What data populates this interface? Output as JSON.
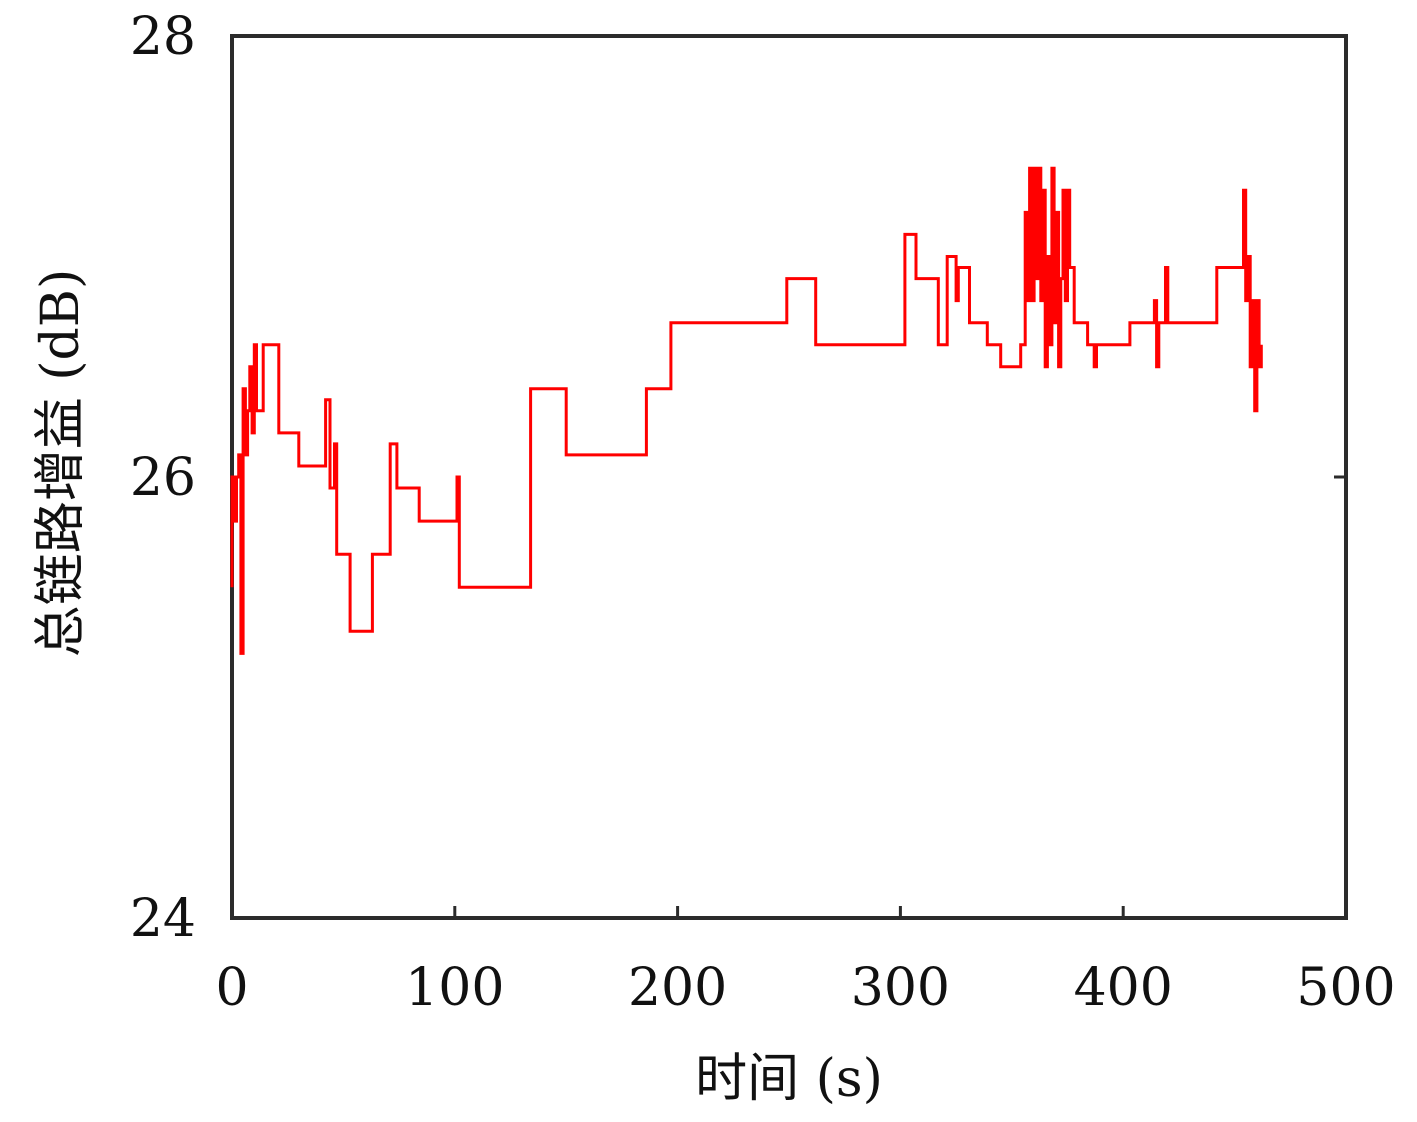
{
  "chart_data": {
    "type": "line",
    "xlabel": "时间 (s)",
    "ylabel": "总链路增益 (dB)",
    "xlim": [
      0,
      500
    ],
    "ylim": [
      24,
      28
    ],
    "xticks": [
      0,
      100,
      200,
      300,
      400,
      500
    ],
    "yticks": [
      24,
      26,
      28
    ],
    "x_tick_labels": [
      "0",
      "100",
      "200",
      "300",
      "400",
      "500"
    ],
    "y_tick_labels": [
      "24",
      "26",
      "28"
    ],
    "grid": false,
    "step": true,
    "series": [
      {
        "color": "#ff0000",
        "points": [
          [
            0.0,
            25.5
          ],
          [
            0.0,
            26.0
          ],
          [
            1.0,
            26.0
          ],
          [
            1.0,
            25.8
          ],
          [
            2.0,
            25.8
          ],
          [
            2.0,
            26.0
          ],
          [
            3.0,
            26.0
          ],
          [
            3.0,
            26.1
          ],
          [
            4.0,
            26.1
          ],
          [
            4.0,
            25.2
          ],
          [
            5.0,
            25.2
          ],
          [
            5.0,
            26.4
          ],
          [
            6.0,
            26.4
          ],
          [
            6.0,
            26.1
          ],
          [
            7.0,
            26.1
          ],
          [
            7.0,
            26.3
          ],
          [
            8.0,
            26.3
          ],
          [
            8.0,
            26.5
          ],
          [
            9.0,
            26.5
          ],
          [
            9.0,
            26.2
          ],
          [
            10.0,
            26.2
          ],
          [
            10.0,
            26.6
          ],
          [
            11.0,
            26.6
          ],
          [
            11.0,
            26.3
          ],
          [
            14.0,
            26.3
          ],
          [
            14.0,
            26.6
          ],
          [
            21.0,
            26.6
          ],
          [
            21.0,
            26.2
          ],
          [
            30.0,
            26.2
          ],
          [
            30.0,
            26.05
          ],
          [
            42.0,
            26.05
          ],
          [
            42.0,
            26.35
          ],
          [
            44.0,
            26.35
          ],
          [
            44.0,
            25.95
          ],
          [
            46.0,
            25.95
          ],
          [
            46.0,
            26.15
          ],
          [
            47.0,
            26.15
          ],
          [
            47.0,
            25.65
          ],
          [
            53.0,
            25.65
          ],
          [
            53.0,
            25.3
          ],
          [
            63.0,
            25.3
          ],
          [
            63.0,
            25.65
          ],
          [
            71.0,
            25.65
          ],
          [
            71.0,
            26.15
          ],
          [
            74.0,
            26.15
          ],
          [
            74.0,
            25.95
          ],
          [
            84.0,
            25.95
          ],
          [
            84.0,
            25.8
          ],
          [
            101.0,
            25.8
          ],
          [
            101.0,
            26.0
          ],
          [
            102.0,
            26.0
          ],
          [
            102.0,
            25.5
          ],
          [
            134.0,
            25.5
          ],
          [
            134.0,
            26.4
          ],
          [
            150.0,
            26.4
          ],
          [
            150.0,
            26.1
          ],
          [
            186.0,
            26.1
          ],
          [
            186.0,
            26.4
          ],
          [
            197.0,
            26.4
          ],
          [
            197.0,
            26.7
          ],
          [
            249.0,
            26.7
          ],
          [
            249.0,
            26.9
          ],
          [
            262.0,
            26.9
          ],
          [
            262.0,
            26.6
          ],
          [
            302.0,
            26.6
          ],
          [
            302.0,
            27.1
          ],
          [
            307.0,
            27.1
          ],
          [
            307.0,
            26.9
          ],
          [
            317.0,
            26.9
          ],
          [
            317.0,
            26.6
          ],
          [
            321.0,
            26.6
          ],
          [
            321.0,
            27.0
          ],
          [
            325.0,
            27.0
          ],
          [
            325.0,
            26.8
          ],
          [
            326.0,
            26.8
          ],
          [
            326.0,
            26.95
          ],
          [
            331.0,
            26.95
          ],
          [
            331.0,
            26.7
          ],
          [
            339.0,
            26.7
          ],
          [
            339.0,
            26.6
          ],
          [
            345.0,
            26.6
          ],
          [
            345.0,
            26.5
          ],
          [
            354.0,
            26.5
          ],
          [
            354.0,
            26.6
          ],
          [
            356.0,
            26.6
          ],
          [
            356.0,
            27.2
          ],
          [
            357.0,
            27.2
          ],
          [
            357.0,
            26.8
          ],
          [
            358.0,
            26.8
          ],
          [
            358.0,
            27.4
          ],
          [
            359.0,
            27.4
          ],
          [
            359.0,
            26.8
          ],
          [
            360.0,
            26.8
          ],
          [
            360.0,
            27.4
          ],
          [
            361.0,
            27.4
          ],
          [
            361.0,
            26.9
          ],
          [
            362.0,
            26.9
          ],
          [
            362.0,
            27.4
          ],
          [
            363.0,
            27.4
          ],
          [
            363.0,
            26.8
          ],
          [
            364.0,
            26.8
          ],
          [
            364.0,
            27.3
          ],
          [
            365.0,
            27.3
          ],
          [
            365.0,
            26.5
          ],
          [
            366.0,
            26.5
          ],
          [
            366.0,
            27.0
          ],
          [
            367.0,
            27.0
          ],
          [
            367.0,
            26.6
          ],
          [
            368.0,
            26.6
          ],
          [
            368.0,
            27.4
          ],
          [
            369.0,
            27.4
          ],
          [
            369.0,
            26.7
          ],
          [
            370.0,
            26.7
          ],
          [
            370.0,
            27.2
          ],
          [
            371.0,
            27.2
          ],
          [
            371.0,
            26.5
          ],
          [
            372.0,
            26.5
          ],
          [
            372.0,
            26.9
          ],
          [
            373.0,
            26.9
          ],
          [
            373.0,
            27.3
          ],
          [
            374.0,
            27.3
          ],
          [
            374.0,
            26.8
          ],
          [
            375.0,
            26.8
          ],
          [
            375.0,
            27.3
          ],
          [
            376.0,
            27.3
          ],
          [
            376.0,
            26.95
          ],
          [
            378.0,
            26.95
          ],
          [
            378.0,
            26.7
          ],
          [
            384.0,
            26.7
          ],
          [
            384.0,
            26.6
          ],
          [
            387.0,
            26.6
          ],
          [
            387.0,
            26.5
          ],
          [
            388.0,
            26.5
          ],
          [
            388.0,
            26.6
          ],
          [
            403.0,
            26.6
          ],
          [
            403.0,
            26.7
          ],
          [
            414.0,
            26.7
          ],
          [
            414.0,
            26.8
          ],
          [
            415.0,
            26.8
          ],
          [
            415.0,
            26.5
          ],
          [
            416.0,
            26.5
          ],
          [
            416.0,
            26.7
          ],
          [
            419.0,
            26.7
          ],
          [
            419.0,
            26.95
          ],
          [
            420.0,
            26.95
          ],
          [
            420.0,
            26.7
          ],
          [
            442.0,
            26.7
          ],
          [
            442.0,
            26.95
          ],
          [
            454.0,
            26.95
          ],
          [
            454.0,
            27.3
          ],
          [
            455.0,
            27.3
          ],
          [
            455.0,
            26.8
          ],
          [
            456.0,
            26.8
          ],
          [
            456.0,
            27.0
          ],
          [
            457.0,
            27.0
          ],
          [
            457.0,
            26.5
          ],
          [
            458.0,
            26.5
          ],
          [
            458.0,
            26.8
          ],
          [
            459.0,
            26.8
          ],
          [
            459.0,
            26.3
          ],
          [
            460.0,
            26.3
          ],
          [
            460.0,
            26.8
          ],
          [
            461.0,
            26.8
          ],
          [
            461.0,
            26.5
          ],
          [
            462.0,
            26.5
          ],
          [
            462.0,
            26.6
          ]
        ]
      }
    ]
  }
}
